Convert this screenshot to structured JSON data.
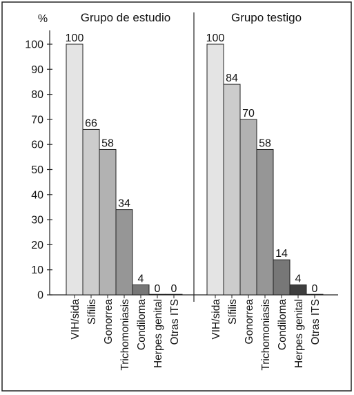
{
  "chart_data": {
    "type": "bar",
    "ylabel": "%",
    "ylim": [
      0,
      100
    ],
    "yticks": [
      0,
      10,
      20,
      30,
      40,
      50,
      60,
      70,
      80,
      90,
      100
    ],
    "grid": false,
    "panels": [
      {
        "title": "Grupo de estudio",
        "categories": [
          "VIH/sida",
          "Sífilis",
          "Gonorrea",
          "Trichomoniasis",
          "Condiloma",
          "Herpes genital",
          "Otras ITS"
        ],
        "values": [
          100,
          66,
          58,
          34,
          4,
          0,
          0
        ]
      },
      {
        "title": "Grupo testigo",
        "categories": [
          "VIH/sida",
          "Sífilis",
          "Gonorrea",
          "Trichomoniasis",
          "Condiloma",
          "Herpes genital",
          "Otras ITS"
        ],
        "values": [
          100,
          84,
          70,
          58,
          14,
          4,
          0
        ]
      }
    ],
    "bar_colors": [
      "#e4e4e4",
      "#cccccc",
      "#b2b2b2",
      "#969696",
      "#777777",
      "#3e3e3e",
      "#e8e8e8"
    ]
  }
}
